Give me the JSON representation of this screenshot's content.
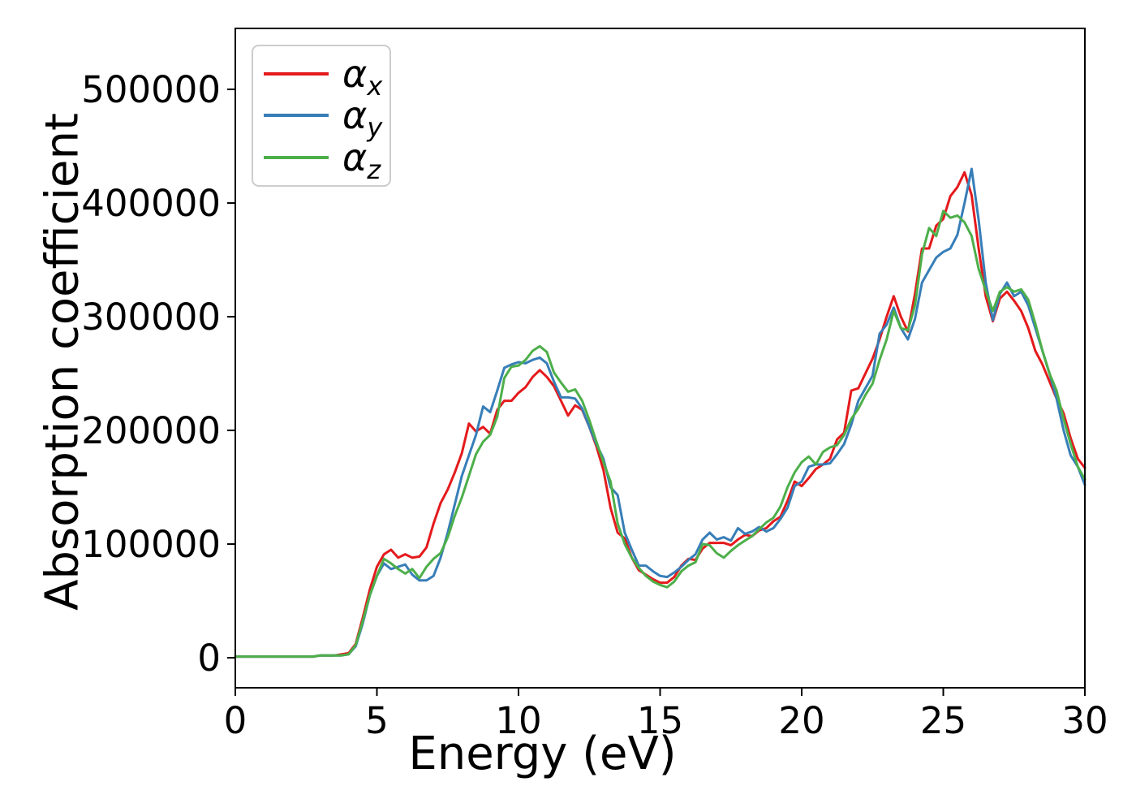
{
  "figure": {
    "xlabel": "Energy (eV)",
    "ylabel": "Absorption coefficient",
    "background_color": "#ffffff",
    "spine_color": "#000000",
    "legend": {
      "items": [
        {
          "symbol": "α",
          "subscript": "x",
          "color": "#e41a1c"
        },
        {
          "symbol": "α",
          "subscript": "y",
          "color": "#377eb8"
        },
        {
          "symbol": "α",
          "subscript": "z",
          "color": "#4daf4a"
        }
      ]
    }
  },
  "chart_data": {
    "type": "line",
    "title": "",
    "xlabel": "Energy (eV)",
    "ylabel": "Absorption coefficient",
    "xlim": [
      0,
      30
    ],
    "ylim": [
      -26400,
      553600
    ],
    "xticks": [
      0,
      5,
      10,
      15,
      20,
      25,
      30
    ],
    "xtick_labels": [
      "0",
      "5",
      "10",
      "15",
      "20",
      "25",
      "30"
    ],
    "yticks": [
      0,
      100000,
      200000,
      300000,
      400000,
      500000
    ],
    "ytick_labels": [
      "0",
      "100000",
      "200000",
      "300000",
      "400000",
      "500000"
    ],
    "grid": false,
    "legend_position": "upper left",
    "x": [
      0,
      0.25,
      0.5,
      0.75,
      1,
      1.25,
      1.5,
      1.75,
      2,
      2.25,
      2.5,
      2.75,
      3,
      3.25,
      3.5,
      3.75,
      4,
      4.25,
      4.5,
      4.75,
      5,
      5.25,
      5.5,
      5.75,
      6,
      6.25,
      6.5,
      6.75,
      7,
      7.25,
      7.5,
      7.75,
      8,
      8.25,
      8.5,
      8.75,
      9,
      9.25,
      9.5,
      9.75,
      10,
      10.25,
      10.5,
      10.75,
      11,
      11.25,
      11.5,
      11.75,
      12,
      12.25,
      12.5,
      12.75,
      13,
      13.25,
      13.5,
      13.75,
      14,
      14.25,
      14.5,
      14.75,
      15,
      15.25,
      15.5,
      15.75,
      16,
      16.25,
      16.5,
      16.75,
      17,
      17.25,
      17.5,
      17.75,
      18,
      18.25,
      18.5,
      18.75,
      19,
      19.25,
      19.5,
      19.75,
      20,
      20.25,
      20.5,
      20.75,
      21,
      21.25,
      21.5,
      21.75,
      22,
      22.25,
      22.5,
      22.75,
      23,
      23.25,
      23.5,
      23.75,
      24,
      24.25,
      24.5,
      24.75,
      25,
      25.25,
      25.5,
      25.75,
      26,
      26.25,
      26.5,
      26.75,
      27,
      27.25,
      27.5,
      27.75,
      28,
      28.25,
      28.5,
      28.75,
      29,
      29.25,
      29.5,
      29.75,
      30
    ],
    "series": [
      {
        "id": "alpha-x",
        "name": "α_x",
        "color": "#e41a1c",
        "values": [
          1000,
          1000,
          1000,
          1000,
          1000,
          1000,
          1000,
          1000,
          1000,
          1000,
          1000,
          1000,
          2000,
          2000,
          2000,
          3000,
          4000,
          12000,
          35000,
          60000,
          80000,
          91000,
          95000,
          88000,
          91000,
          88000,
          89000,
          97000,
          118000,
          136000,
          148000,
          163000,
          180000,
          206000,
          199000,
          203000,
          197000,
          218000,
          226000,
          226000,
          233000,
          238000,
          247000,
          253000,
          247000,
          239000,
          226000,
          213000,
          222000,
          218000,
          203000,
          186000,
          165000,
          132000,
          110000,
          105000,
          88000,
          77000,
          73000,
          69000,
          66000,
          66000,
          71000,
          81000,
          87000,
          86000,
          96000,
          101000,
          101000,
          101000,
          99000,
          104000,
          108000,
          107000,
          112000,
          114000,
          120000,
          124000,
          138000,
          155000,
          151000,
          158000,
          166000,
          170000,
          175000,
          192000,
          198000,
          235000,
          237000,
          250000,
          263000,
          280000,
          300000,
          318000,
          300000,
          287000,
          320000,
          360000,
          360000,
          380000,
          386000,
          406000,
          414000,
          427000,
          407000,
          360000,
          318000,
          296000,
          316000,
          322000,
          314000,
          305000,
          290000,
          270000,
          258000,
          243000,
          228000,
          215000,
          193000,
          175000,
          167000
        ]
      },
      {
        "id": "alpha-y",
        "name": "α_y",
        "color": "#377eb8",
        "values": [
          1000,
          1000,
          1000,
          1000,
          1000,
          1000,
          1000,
          1000,
          1000,
          1000,
          1000,
          1000,
          2000,
          2000,
          2000,
          2000,
          3000,
          10000,
          30000,
          55000,
          72000,
          83000,
          78000,
          80000,
          82000,
          73000,
          68000,
          68000,
          72000,
          88000,
          110000,
          135000,
          160000,
          178000,
          196000,
          221000,
          216000,
          235000,
          255000,
          258000,
          260000,
          259000,
          262000,
          264000,
          259000,
          243000,
          229000,
          229000,
          228000,
          219000,
          203000,
          188000,
          175000,
          150000,
          143000,
          110000,
          95000,
          81000,
          81000,
          76000,
          72000,
          71000,
          75000,
          80000,
          86000,
          91000,
          104000,
          110000,
          104000,
          106000,
          103000,
          114000,
          109000,
          111000,
          115000,
          111000,
          114000,
          122000,
          132000,
          151000,
          155000,
          168000,
          170000,
          170000,
          171000,
          179000,
          188000,
          205000,
          226000,
          237000,
          248000,
          285000,
          293000,
          308000,
          290000,
          280000,
          298000,
          330000,
          341000,
          352000,
          357000,
          360000,
          372000,
          400000,
          430000,
          385000,
          330000,
          297000,
          320000,
          330000,
          318000,
          322000,
          310000,
          290000,
          270000,
          250000,
          228000,
          200000,
          178000,
          168000,
          152000
        ]
      },
      {
        "id": "alpha-z",
        "name": "α_z",
        "color": "#4daf4a",
        "values": [
          1000,
          1000,
          1000,
          1000,
          1000,
          1000,
          1000,
          1000,
          1000,
          1000,
          1000,
          1000,
          2000,
          2000,
          2000,
          2000,
          3000,
          11000,
          32000,
          55000,
          72000,
          87000,
          83000,
          78000,
          74000,
          78000,
          70000,
          80000,
          87000,
          92000,
          106000,
          125000,
          141000,
          160000,
          179000,
          190000,
          196000,
          212000,
          246000,
          256000,
          257000,
          262000,
          270000,
          274000,
          269000,
          251000,
          242000,
          234000,
          236000,
          226000,
          209000,
          190000,
          172000,
          155000,
          118000,
          100000,
          88000,
          79000,
          72000,
          67000,
          64000,
          62000,
          67000,
          76000,
          81000,
          84000,
          100000,
          99000,
          92000,
          88000,
          94000,
          99000,
          103000,
          107000,
          113000,
          119000,
          123000,
          133000,
          150000,
          163000,
          172000,
          177000,
          170000,
          181000,
          185000,
          187000,
          196000,
          210000,
          219000,
          231000,
          241000,
          262000,
          280000,
          305000,
          290000,
          288000,
          310000,
          355000,
          378000,
          371000,
          393000,
          387000,
          389000,
          383000,
          371000,
          342000,
          323000,
          305000,
          322000,
          326000,
          322000,
          324000,
          315000,
          294000,
          270000,
          250000,
          235000,
          210000,
          188000,
          168000,
          157000
        ]
      }
    ]
  }
}
